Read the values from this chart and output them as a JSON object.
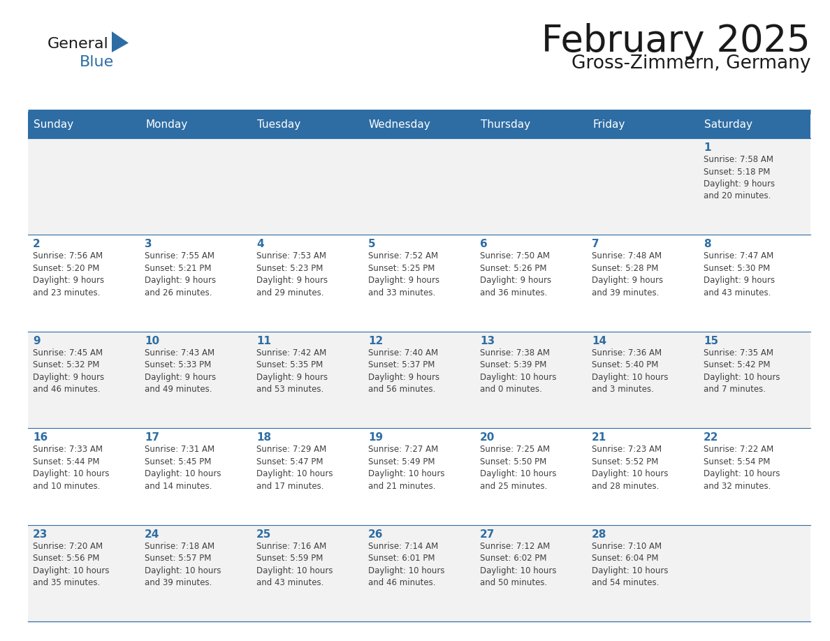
{
  "title": "February 2025",
  "subtitle": "Gross-Zimmern, Germany",
  "header_bg": "#2E6DA4",
  "header_text": "#FFFFFF",
  "cell_bg_odd": "#F2F2F2",
  "cell_bg_even": "#FFFFFF",
  "day_number_color": "#2E6DA4",
  "info_text_color": "#404040",
  "line_color": "#2E6DA4",
  "separator_color": "#2E6DA4",
  "days_of_week": [
    "Sunday",
    "Monday",
    "Tuesday",
    "Wednesday",
    "Thursday",
    "Friday",
    "Saturday"
  ],
  "weeks": [
    [
      {
        "day": 0,
        "info": ""
      },
      {
        "day": 0,
        "info": ""
      },
      {
        "day": 0,
        "info": ""
      },
      {
        "day": 0,
        "info": ""
      },
      {
        "day": 0,
        "info": ""
      },
      {
        "day": 0,
        "info": ""
      },
      {
        "day": 1,
        "info": "Sunrise: 7:58 AM\nSunset: 5:18 PM\nDaylight: 9 hours\nand 20 minutes."
      }
    ],
    [
      {
        "day": 2,
        "info": "Sunrise: 7:56 AM\nSunset: 5:20 PM\nDaylight: 9 hours\nand 23 minutes."
      },
      {
        "day": 3,
        "info": "Sunrise: 7:55 AM\nSunset: 5:21 PM\nDaylight: 9 hours\nand 26 minutes."
      },
      {
        "day": 4,
        "info": "Sunrise: 7:53 AM\nSunset: 5:23 PM\nDaylight: 9 hours\nand 29 minutes."
      },
      {
        "day": 5,
        "info": "Sunrise: 7:52 AM\nSunset: 5:25 PM\nDaylight: 9 hours\nand 33 minutes."
      },
      {
        "day": 6,
        "info": "Sunrise: 7:50 AM\nSunset: 5:26 PM\nDaylight: 9 hours\nand 36 minutes."
      },
      {
        "day": 7,
        "info": "Sunrise: 7:48 AM\nSunset: 5:28 PM\nDaylight: 9 hours\nand 39 minutes."
      },
      {
        "day": 8,
        "info": "Sunrise: 7:47 AM\nSunset: 5:30 PM\nDaylight: 9 hours\nand 43 minutes."
      }
    ],
    [
      {
        "day": 9,
        "info": "Sunrise: 7:45 AM\nSunset: 5:32 PM\nDaylight: 9 hours\nand 46 minutes."
      },
      {
        "day": 10,
        "info": "Sunrise: 7:43 AM\nSunset: 5:33 PM\nDaylight: 9 hours\nand 49 minutes."
      },
      {
        "day": 11,
        "info": "Sunrise: 7:42 AM\nSunset: 5:35 PM\nDaylight: 9 hours\nand 53 minutes."
      },
      {
        "day": 12,
        "info": "Sunrise: 7:40 AM\nSunset: 5:37 PM\nDaylight: 9 hours\nand 56 minutes."
      },
      {
        "day": 13,
        "info": "Sunrise: 7:38 AM\nSunset: 5:39 PM\nDaylight: 10 hours\nand 0 minutes."
      },
      {
        "day": 14,
        "info": "Sunrise: 7:36 AM\nSunset: 5:40 PM\nDaylight: 10 hours\nand 3 minutes."
      },
      {
        "day": 15,
        "info": "Sunrise: 7:35 AM\nSunset: 5:42 PM\nDaylight: 10 hours\nand 7 minutes."
      }
    ],
    [
      {
        "day": 16,
        "info": "Sunrise: 7:33 AM\nSunset: 5:44 PM\nDaylight: 10 hours\nand 10 minutes."
      },
      {
        "day": 17,
        "info": "Sunrise: 7:31 AM\nSunset: 5:45 PM\nDaylight: 10 hours\nand 14 minutes."
      },
      {
        "day": 18,
        "info": "Sunrise: 7:29 AM\nSunset: 5:47 PM\nDaylight: 10 hours\nand 17 minutes."
      },
      {
        "day": 19,
        "info": "Sunrise: 7:27 AM\nSunset: 5:49 PM\nDaylight: 10 hours\nand 21 minutes."
      },
      {
        "day": 20,
        "info": "Sunrise: 7:25 AM\nSunset: 5:50 PM\nDaylight: 10 hours\nand 25 minutes."
      },
      {
        "day": 21,
        "info": "Sunrise: 7:23 AM\nSunset: 5:52 PM\nDaylight: 10 hours\nand 28 minutes."
      },
      {
        "day": 22,
        "info": "Sunrise: 7:22 AM\nSunset: 5:54 PM\nDaylight: 10 hours\nand 32 minutes."
      }
    ],
    [
      {
        "day": 23,
        "info": "Sunrise: 7:20 AM\nSunset: 5:56 PM\nDaylight: 10 hours\nand 35 minutes."
      },
      {
        "day": 24,
        "info": "Sunrise: 7:18 AM\nSunset: 5:57 PM\nDaylight: 10 hours\nand 39 minutes."
      },
      {
        "day": 25,
        "info": "Sunrise: 7:16 AM\nSunset: 5:59 PM\nDaylight: 10 hours\nand 43 minutes."
      },
      {
        "day": 26,
        "info": "Sunrise: 7:14 AM\nSunset: 6:01 PM\nDaylight: 10 hours\nand 46 minutes."
      },
      {
        "day": 27,
        "info": "Sunrise: 7:12 AM\nSunset: 6:02 PM\nDaylight: 10 hours\nand 50 minutes."
      },
      {
        "day": 28,
        "info": "Sunrise: 7:10 AM\nSunset: 6:04 PM\nDaylight: 10 hours\nand 54 minutes."
      },
      {
        "day": 0,
        "info": ""
      }
    ]
  ],
  "header_fontsize": 11,
  "day_num_fontsize": 11,
  "info_fontsize": 8.5,
  "title_fontsize": 38,
  "subtitle_fontsize": 19,
  "logo_general_fontsize": 16,
  "logo_blue_fontsize": 16
}
